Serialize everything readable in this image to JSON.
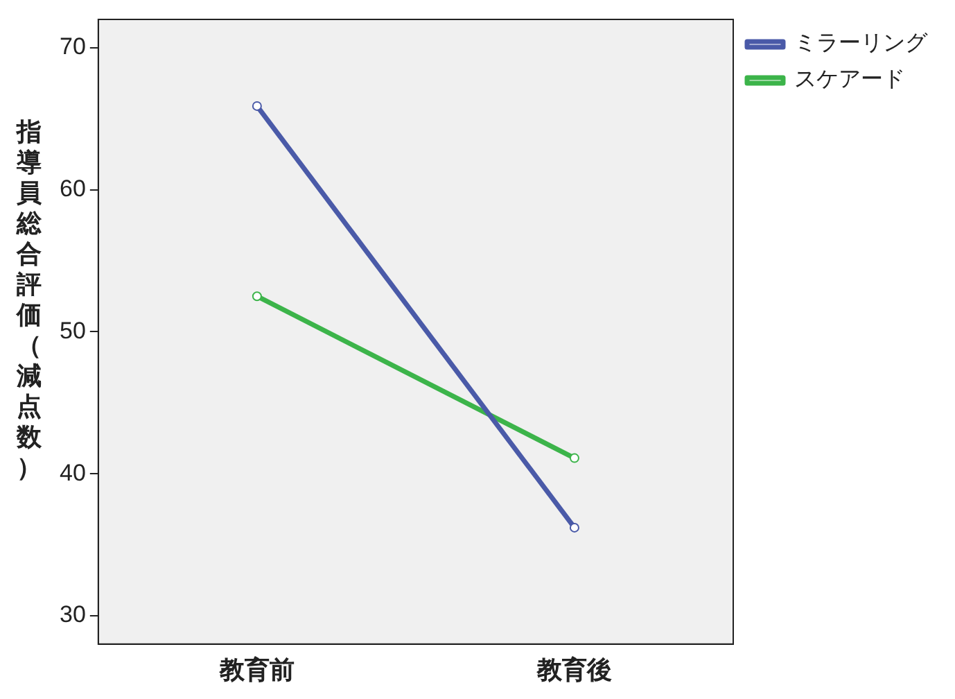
{
  "chart_data": {
    "type": "line",
    "ylabel": "指導員総合評価（減点数）",
    "categories": [
      "教育前",
      "教育後"
    ],
    "series": [
      {
        "name": "ミラーリング",
        "color": "#4a5aa8",
        "values": [
          65.9,
          36.2
        ]
      },
      {
        "name": "スケアード",
        "color": "#3cb44a",
        "values": [
          52.5,
          41.1
        ]
      }
    ],
    "ylim": [
      28,
      72
    ],
    "yticks": [
      30,
      40,
      50,
      60,
      70
    ],
    "grid": false,
    "legend": "top right",
    "marker": "circle",
    "line_style": "solid"
  }
}
